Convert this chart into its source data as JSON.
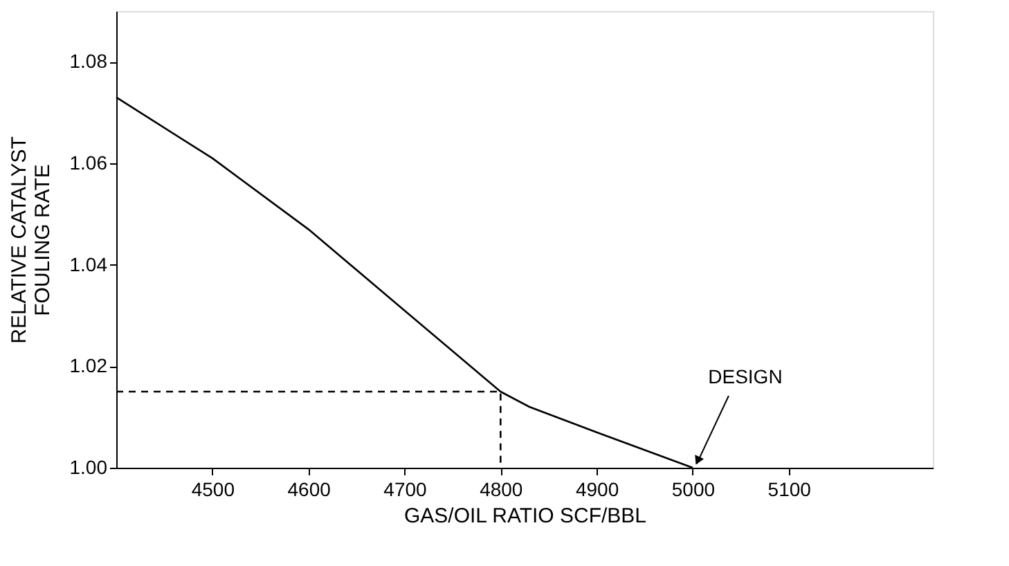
{
  "chart_data": {
    "type": "line",
    "xlabel": "GAS/OIL RATIO SCF/BBL",
    "ylabel": "RELATIVE CATALYST\nFOULING RATE",
    "xlim": [
      4400,
      5250
    ],
    "xticks": [
      4500,
      4600,
      4700,
      4800,
      4900,
      5000,
      5100
    ],
    "ylim": [
      1.0,
      1.09
    ],
    "yticks": [
      {
        "value": 1,
        "label": "1.00"
      },
      1.02,
      1.04,
      1.06,
      1.08
    ],
    "grid": false,
    "series": [
      {
        "color": "#000000",
        "line_style": "solid",
        "x": [
          4400,
          4500,
          4600,
          4700,
          4800,
          4830,
          4900,
          5000
        ],
        "values": [
          1.073,
          1.061,
          1.047,
          1.031,
          1.015,
          1.012,
          1.007,
          1.0
        ]
      },
      {
        "color": "#000000",
        "line_style": "dashed",
        "x": [
          4400,
          4800,
          4800
        ],
        "values": [
          1.015,
          1.015,
          1.0
        ]
      }
    ],
    "annotations": [
      {
        "text": "DESIGN",
        "x": 5000,
        "y": 1.0
      }
    ]
  }
}
